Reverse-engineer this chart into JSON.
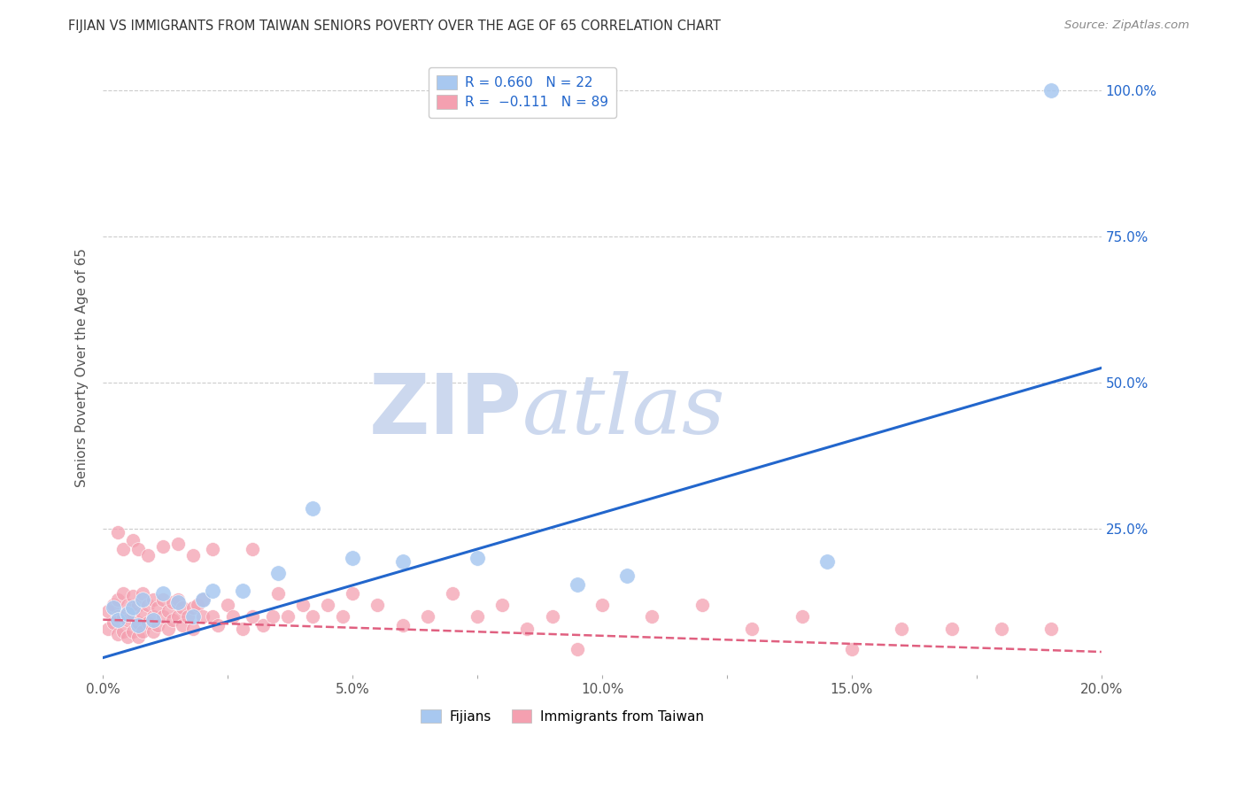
{
  "title": "FIJIAN VS IMMIGRANTS FROM TAIWAN SENIORS POVERTY OVER THE AGE OF 65 CORRELATION CHART",
  "source": "Source: ZipAtlas.com",
  "ylabel": "Seniors Poverty Over the Age of 65",
  "xmin": 0.0,
  "xmax": 0.2,
  "ymin": 0.0,
  "ymax": 1.05,
  "xticks": [
    0.0,
    0.025,
    0.05,
    0.075,
    0.1,
    0.125,
    0.15,
    0.175,
    0.2
  ],
  "xtick_labels": [
    "0.0%",
    "",
    "5.0%",
    "",
    "10.0%",
    "",
    "15.0%",
    "",
    "20.0%"
  ],
  "ytick_positions": [
    0.0,
    0.25,
    0.5,
    0.75,
    1.0
  ],
  "ytick_labels": [
    "",
    "25.0%",
    "50.0%",
    "75.0%",
    "100.0%"
  ],
  "grid_color": "#cccccc",
  "background_color": "#ffffff",
  "fijian_color": "#a8c8f0",
  "taiwan_color": "#f4a0b0",
  "fijian_line_color": "#2266cc",
  "taiwan_line_color": "#e06080",
  "legend_label_fijian": "Fijians",
  "legend_label_taiwan": "Immigrants from Taiwan",
  "fijian_scatter_x": [
    0.002,
    0.003,
    0.005,
    0.006,
    0.007,
    0.008,
    0.01,
    0.012,
    0.015,
    0.018,
    0.02,
    0.022,
    0.028,
    0.035,
    0.042,
    0.05,
    0.06,
    0.075,
    0.095,
    0.105,
    0.145,
    0.19
  ],
  "fijian_scatter_y": [
    0.115,
    0.095,
    0.105,
    0.115,
    0.085,
    0.13,
    0.095,
    0.14,
    0.125,
    0.1,
    0.13,
    0.145,
    0.145,
    0.175,
    0.285,
    0.2,
    0.195,
    0.2,
    0.155,
    0.17,
    0.195,
    1.0
  ],
  "taiwan_scatter_x": [
    0.001,
    0.001,
    0.002,
    0.002,
    0.003,
    0.003,
    0.003,
    0.004,
    0.004,
    0.004,
    0.005,
    0.005,
    0.005,
    0.006,
    0.006,
    0.006,
    0.007,
    0.007,
    0.007,
    0.008,
    0.008,
    0.008,
    0.009,
    0.009,
    0.01,
    0.01,
    0.01,
    0.011,
    0.011,
    0.012,
    0.012,
    0.013,
    0.013,
    0.014,
    0.014,
    0.015,
    0.015,
    0.016,
    0.016,
    0.017,
    0.018,
    0.018,
    0.019,
    0.02,
    0.02,
    0.022,
    0.023,
    0.025,
    0.026,
    0.028,
    0.03,
    0.032,
    0.034,
    0.035,
    0.037,
    0.04,
    0.042,
    0.045,
    0.048,
    0.05,
    0.055,
    0.06,
    0.065,
    0.07,
    0.075,
    0.08,
    0.085,
    0.09,
    0.1,
    0.11,
    0.12,
    0.13,
    0.14,
    0.15,
    0.16,
    0.17,
    0.18,
    0.19,
    0.003,
    0.004,
    0.006,
    0.007,
    0.009,
    0.012,
    0.015,
    0.018,
    0.022,
    0.03,
    0.095
  ],
  "taiwan_scatter_y": [
    0.11,
    0.08,
    0.12,
    0.09,
    0.13,
    0.1,
    0.07,
    0.14,
    0.1,
    0.075,
    0.12,
    0.095,
    0.065,
    0.135,
    0.105,
    0.075,
    0.12,
    0.09,
    0.065,
    0.14,
    0.105,
    0.075,
    0.12,
    0.09,
    0.1,
    0.13,
    0.075,
    0.115,
    0.085,
    0.1,
    0.13,
    0.08,
    0.11,
    0.095,
    0.125,
    0.1,
    0.13,
    0.085,
    0.115,
    0.1,
    0.08,
    0.115,
    0.12,
    0.1,
    0.13,
    0.1,
    0.085,
    0.12,
    0.1,
    0.08,
    0.1,
    0.085,
    0.1,
    0.14,
    0.1,
    0.12,
    0.1,
    0.12,
    0.1,
    0.14,
    0.12,
    0.085,
    0.1,
    0.14,
    0.1,
    0.12,
    0.08,
    0.1,
    0.12,
    0.1,
    0.12,
    0.08,
    0.1,
    0.045,
    0.08,
    0.08,
    0.08,
    0.08,
    0.245,
    0.215,
    0.23,
    0.215,
    0.205,
    0.22,
    0.225,
    0.205,
    0.215,
    0.215,
    0.045
  ],
  "fijian_line_x0": 0.0,
  "fijian_line_y0": 0.03,
  "fijian_line_x1": 0.2,
  "fijian_line_y1": 0.525,
  "taiwan_line_x0": 0.0,
  "taiwan_line_y0": 0.095,
  "taiwan_line_x1": 0.2,
  "taiwan_line_y1": 0.04,
  "watermark_zip": "ZIP",
  "watermark_atlas": "atlas",
  "watermark_color": "#ccd8ee",
  "watermark_fontsize": 68
}
